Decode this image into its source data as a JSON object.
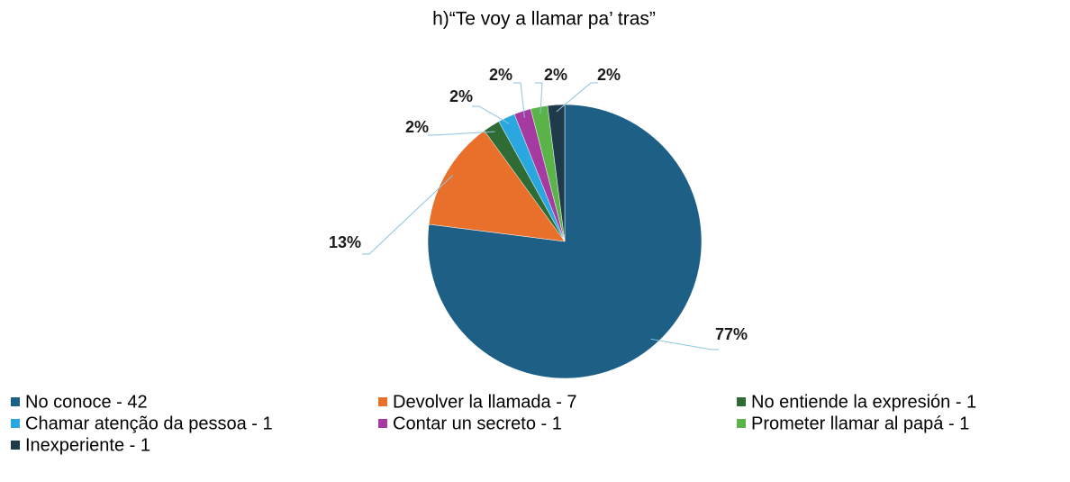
{
  "chart_data": {
    "type": "pie",
    "title": "h)“Te voy a llamar pa’ tras”",
    "categories": [
      "No conoce - 42",
      "Devolver la llamada - 7",
      "No entiende la expresión - 1",
      "Chamar atenção da pessoa - 1",
      "Contar un secreto - 1",
      "Prometer llamar al papá - 1",
      "Inexperiente - 1"
    ],
    "values": [
      77,
      13,
      2,
      2,
      2,
      2,
      2
    ],
    "value_labels": [
      "77%",
      "13%",
      "2%",
      "2%",
      "2%",
      "2%",
      "2%"
    ],
    "colors": [
      "#1e5f86",
      "#e8702a",
      "#2e6b35",
      "#2aa7de",
      "#a53aa0",
      "#5ab44a",
      "#1f3a4a"
    ],
    "legend": "bottom"
  }
}
